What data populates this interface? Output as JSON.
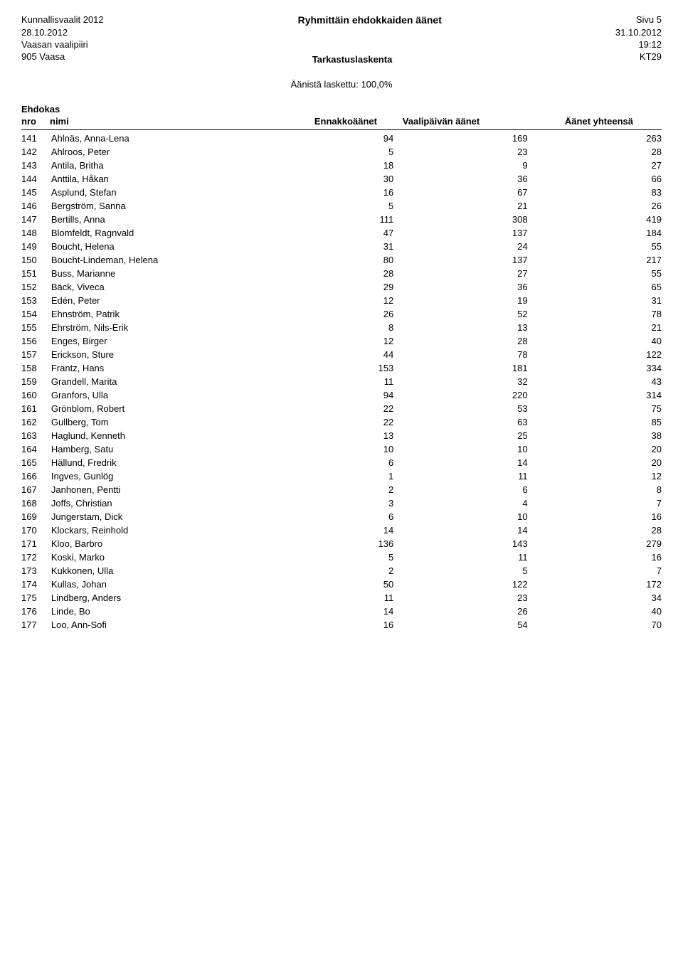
{
  "header": {
    "election": "Kunnallisvaalit 2012",
    "page_title": "Ryhmittäin ehdokkaiden äänet",
    "page_label": "Sivu 5",
    "date_left": "28.10.2012",
    "date_right": "31.10.2012",
    "district": "Vaasan vaalipiiri",
    "time": "19:12",
    "area_code": "905 Vaasa",
    "counting": "Tarkastuslaskenta",
    "kt": "KT29",
    "counted": "Äänistä laskettu: 100,0%"
  },
  "columns": {
    "ehdokas": "Ehdokas",
    "nro": "nro",
    "nimi": "nimi",
    "ennakko": "Ennakkoäänet",
    "vaalipaivan": "Vaalipäivän äänet",
    "yhteensa": "Äänet yhteensä"
  },
  "groups": [
    [
      {
        "nro": "141",
        "nimi": "Ahlnäs, Anna-Lena",
        "v1": "94",
        "v2": "169",
        "v3": "263"
      },
      {
        "nro": "142",
        "nimi": "Ahlroos, Peter",
        "v1": "5",
        "v2": "23",
        "v3": "28"
      },
      {
        "nro": "143",
        "nimi": "Antila, Britha",
        "v1": "18",
        "v2": "9",
        "v3": "27"
      },
      {
        "nro": "144",
        "nimi": "Anttila, Håkan",
        "v1": "30",
        "v2": "36",
        "v3": "66"
      }
    ],
    [
      {
        "nro": "145",
        "nimi": "Asplund, Stefan",
        "v1": "16",
        "v2": "67",
        "v3": "83"
      },
      {
        "nro": "146",
        "nimi": "Bergström, Sanna",
        "v1": "5",
        "v2": "21",
        "v3": "26"
      },
      {
        "nro": "147",
        "nimi": "Bertills, Anna",
        "v1": "111",
        "v2": "308",
        "v3": "419"
      },
      {
        "nro": "148",
        "nimi": "Blomfeldt, Ragnvald",
        "v1": "47",
        "v2": "137",
        "v3": "184"
      },
      {
        "nro": "149",
        "nimi": "Boucht, Helena",
        "v1": "31",
        "v2": "24",
        "v3": "55"
      }
    ],
    [
      {
        "nro": "150",
        "nimi": "Boucht-Lindeman, Helena",
        "v1": "80",
        "v2": "137",
        "v3": "217"
      },
      {
        "nro": "151",
        "nimi": "Buss, Marianne",
        "v1": "28",
        "v2": "27",
        "v3": "55"
      },
      {
        "nro": "152",
        "nimi": "Bäck, Viveca",
        "v1": "29",
        "v2": "36",
        "v3": "65"
      },
      {
        "nro": "153",
        "nimi": "Edén, Peter",
        "v1": "12",
        "v2": "19",
        "v3": "31"
      },
      {
        "nro": "154",
        "nimi": "Ehnström, Patrik",
        "v1": "26",
        "v2": "52",
        "v3": "78"
      }
    ],
    [
      {
        "nro": "155",
        "nimi": "Ehrström, Nils-Erik",
        "v1": "8",
        "v2": "13",
        "v3": "21"
      },
      {
        "nro": "156",
        "nimi": "Enges, Birger",
        "v1": "12",
        "v2": "28",
        "v3": "40"
      },
      {
        "nro": "157",
        "nimi": "Erickson, Sture",
        "v1": "44",
        "v2": "78",
        "v3": "122"
      },
      {
        "nro": "158",
        "nimi": "Frantz, Hans",
        "v1": "153",
        "v2": "181",
        "v3": "334"
      },
      {
        "nro": "159",
        "nimi": "Grandell, Marita",
        "v1": "11",
        "v2": "32",
        "v3": "43"
      }
    ],
    [
      {
        "nro": "160",
        "nimi": "Granfors, Ulla",
        "v1": "94",
        "v2": "220",
        "v3": "314"
      },
      {
        "nro": "161",
        "nimi": "Grönblom, Robert",
        "v1": "22",
        "v2": "53",
        "v3": "75"
      },
      {
        "nro": "162",
        "nimi": "Gullberg, Tom",
        "v1": "22",
        "v2": "63",
        "v3": "85"
      },
      {
        "nro": "163",
        "nimi": "Haglund, Kenneth",
        "v1": "13",
        "v2": "25",
        "v3": "38"
      },
      {
        "nro": "164",
        "nimi": "Hamberg, Satu",
        "v1": "10",
        "v2": "10",
        "v3": "20"
      }
    ],
    [
      {
        "nro": "165",
        "nimi": "Hällund, Fredrik",
        "v1": "6",
        "v2": "14",
        "v3": "20"
      },
      {
        "nro": "166",
        "nimi": "Ingves, Gunlög",
        "v1": "1",
        "v2": "11",
        "v3": "12"
      },
      {
        "nro": "167",
        "nimi": "Janhonen, Pentti",
        "v1": "2",
        "v2": "6",
        "v3": "8"
      },
      {
        "nro": "168",
        "nimi": "Joffs, Christian",
        "v1": "3",
        "v2": "4",
        "v3": "7"
      },
      {
        "nro": "169",
        "nimi": "Jungerstam, Dick",
        "v1": "6",
        "v2": "10",
        "v3": "16"
      }
    ],
    [
      {
        "nro": "170",
        "nimi": "Klockars, Reinhold",
        "v1": "14",
        "v2": "14",
        "v3": "28"
      },
      {
        "nro": "171",
        "nimi": "Kloo, Barbro",
        "v1": "136",
        "v2": "143",
        "v3": "279"
      },
      {
        "nro": "172",
        "nimi": "Koski, Marko",
        "v1": "5",
        "v2": "11",
        "v3": "16"
      },
      {
        "nro": "173",
        "nimi": "Kukkonen, Ulla",
        "v1": "2",
        "v2": "5",
        "v3": "7"
      },
      {
        "nro": "174",
        "nimi": "Kullas, Johan",
        "v1": "50",
        "v2": "122",
        "v3": "172"
      }
    ],
    [
      {
        "nro": "175",
        "nimi": "Lindberg, Anders",
        "v1": "11",
        "v2": "23",
        "v3": "34"
      },
      {
        "nro": "176",
        "nimi": "Linde, Bo",
        "v1": "14",
        "v2": "26",
        "v3": "40"
      },
      {
        "nro": "177",
        "nimi": "Loo, Ann-Sofi",
        "v1": "16",
        "v2": "54",
        "v3": "70"
      }
    ]
  ]
}
